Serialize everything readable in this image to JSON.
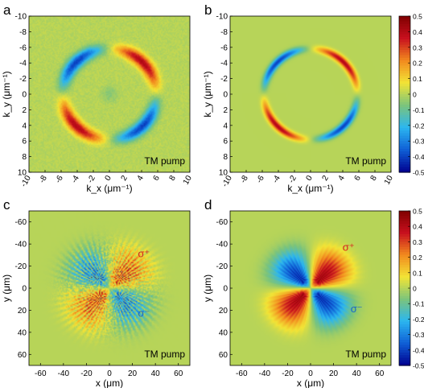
{
  "colormap": [
    "#00008f",
    "#0f5fd6",
    "#2bb6f0",
    "#7cc47b",
    "#f2e436",
    "#f28a1e",
    "#c8101e",
    "#7f0000"
  ],
  "background_color": "#7cc47b",
  "colorbar": {
    "min": -0.5,
    "max": 0.5,
    "ticks": [
      "0.5",
      "0.4",
      "0.3",
      "0.2",
      "0.1",
      "0",
      "-0.1",
      "-0.2",
      "-0.3",
      "-0.4",
      "-0.5"
    ]
  },
  "chart_data": [
    {
      "panel": "a",
      "type": "heatmap",
      "title": "",
      "xlabel": "k_x (μm⁻¹)",
      "ylabel": "k_y (μm⁻¹)",
      "xlim": [
        -10,
        10
      ],
      "ylim": [
        -10,
        10
      ],
      "y_inverted": true,
      "xticks": [
        "-10",
        "-8",
        "-6",
        "-4",
        "-2",
        "0",
        "2",
        "4",
        "6",
        "8",
        "10"
      ],
      "yticks": [
        "-10",
        "-8",
        "-6",
        "-4",
        "-2",
        "0",
        "2",
        "4",
        "6",
        "8",
        "10"
      ],
      "annotation": "TM pump",
      "pattern": "ring",
      "ring_radius": 5.8,
      "sign_pattern": "sin2phi",
      "peak": 0.4,
      "noisy": true,
      "colorbar": false
    },
    {
      "panel": "b",
      "type": "heatmap",
      "title": "",
      "xlabel": "k_x (μm⁻¹)",
      "ylabel": "k_y (μm⁻¹)",
      "xlim": [
        -10,
        10
      ],
      "ylim": [
        -10,
        10
      ],
      "y_inverted": true,
      "xticks": [
        "-10",
        "-8",
        "-6",
        "-4",
        "-2",
        "0",
        "2",
        "4",
        "6",
        "8",
        "10"
      ],
      "yticks": [
        "-10",
        "-8",
        "-6",
        "-4",
        "-2",
        "0",
        "2",
        "4",
        "6",
        "8",
        "10"
      ],
      "annotation": "TM pump",
      "pattern": "ring",
      "ring_radius": 5.8,
      "sign_pattern": "sin2phi",
      "peak": 0.4,
      "noisy": false,
      "colorbar": true
    },
    {
      "panel": "c",
      "type": "heatmap",
      "title": "",
      "xlabel": "x (μm)",
      "ylabel": "y (μm)",
      "xlim": [
        -70,
        70
      ],
      "ylim": [
        -70,
        70
      ],
      "y_inverted": true,
      "xticks": [
        "-60",
        "-40",
        "-20",
        "0",
        "20",
        "40",
        "60"
      ],
      "yticks": [
        "-60",
        "-40",
        "-20",
        "0",
        "20",
        "40",
        "60"
      ],
      "annotation": "TM pump",
      "labels": [
        {
          "text": "σ⁺",
          "color": "#d8201e",
          "x": 30,
          "y": -28
        },
        {
          "text": "σ⁻",
          "color": "#1a66c8",
          "x": 30,
          "y": 26
        }
      ],
      "pattern": "quadrant",
      "spot_radius": 40,
      "sign_pattern": "sin2phi",
      "peak": 0.4,
      "noisy": true,
      "colorbar": false
    },
    {
      "panel": "d",
      "type": "heatmap",
      "title": "",
      "xlabel": "x (μm)",
      "ylabel": "y (μm)",
      "xlim": [
        -70,
        70
      ],
      "ylim": [
        -70,
        70
      ],
      "y_inverted": true,
      "xticks": [
        "-60",
        "-40",
        "-20",
        "0",
        "20",
        "40",
        "60"
      ],
      "yticks": [
        "-60",
        "-40",
        "-20",
        "0",
        "20",
        "40",
        "60"
      ],
      "annotation": "TM pump",
      "labels": [
        {
          "text": "σ⁺",
          "color": "#d8201e",
          "x": 33,
          "y": -34
        },
        {
          "text": "σ⁻",
          "color": "#1a66c8",
          "x": 40,
          "y": 22
        }
      ],
      "pattern": "quadrant",
      "spot_radius": 38,
      "sign_pattern": "sin2phi",
      "peak": 0.48,
      "noisy": false,
      "colorbar": true
    }
  ]
}
